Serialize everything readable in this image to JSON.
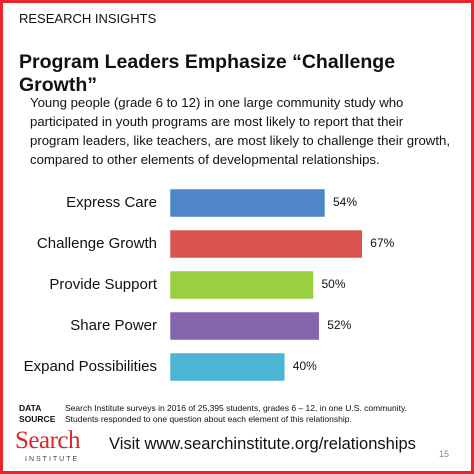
{
  "header": {
    "kicker": "RESEARCH INSIGHTS",
    "title": "Program Leaders Emphasize “Challenge Growth”",
    "description": "Young people (grade 6 to 12) in one large community study who participated in youth programs are most likely to report that their program leaders, like teachers, are most likely to challenge their growth, compared to other elements of developmental relationships."
  },
  "chart_data": {
    "type": "bar",
    "orientation": "horizontal",
    "categories": [
      "Express Care",
      "Challenge Growth",
      "Provide Support",
      "Share Power",
      "Expand Possibilities"
    ],
    "values": [
      54,
      67,
      50,
      52,
      40
    ],
    "value_labels": [
      "54%",
      "67%",
      "50%",
      "52%",
      "40%"
    ],
    "colors": [
      "#4f86c9",
      "#d9534f",
      "#9ccf3f",
      "#8366ad",
      "#4bb5d3"
    ]
  },
  "source": {
    "label_1": "DATA",
    "label_2": "SOURCE",
    "line_1": "Search Institute surveys in 2016 of 25,395 students, grades 6 – 12, in one U.S. community.",
    "line_2": "Students responded to one question about each element of this relationship."
  },
  "footer": {
    "logo_main": "Search",
    "logo_sub": "INSTITUTE",
    "link": "Visit www.searchinstitute.org/relationships",
    "page": "15"
  }
}
